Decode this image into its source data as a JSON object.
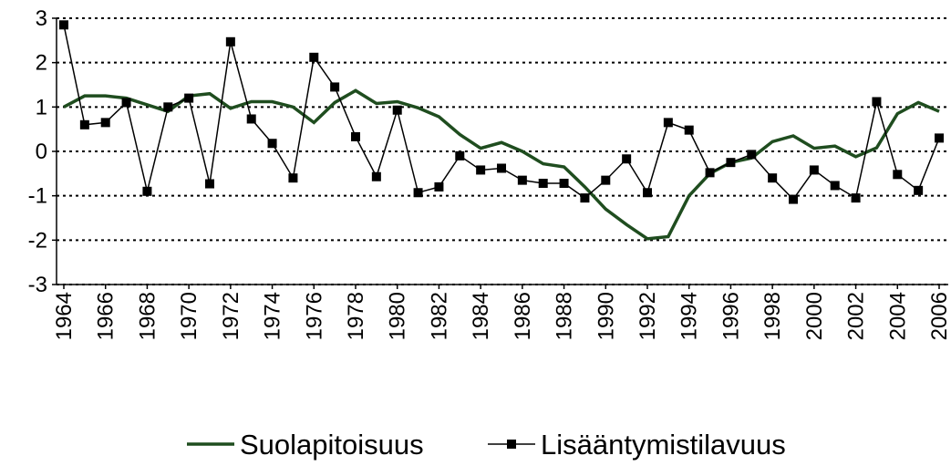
{
  "chart_data": {
    "type": "line",
    "x": [
      1964,
      1965,
      1966,
      1967,
      1968,
      1969,
      1970,
      1971,
      1972,
      1973,
      1974,
      1975,
      1976,
      1977,
      1978,
      1979,
      1980,
      1981,
      1982,
      1983,
      1984,
      1985,
      1986,
      1987,
      1988,
      1989,
      1990,
      1991,
      1992,
      1993,
      1994,
      1995,
      1996,
      1997,
      1998,
      1999,
      2000,
      2001,
      2002,
      2003,
      2004,
      2005,
      2006
    ],
    "series": [
      {
        "name": "Suolapitoisuus",
        "color": "#1f4d1f",
        "marker": "none",
        "values": [
          1.0,
          1.25,
          1.25,
          1.2,
          1.05,
          0.9,
          1.25,
          1.3,
          0.97,
          1.12,
          1.12,
          1.0,
          0.65,
          1.1,
          1.37,
          1.08,
          1.12,
          0.98,
          0.78,
          0.38,
          0.07,
          0.2,
          0.0,
          -0.28,
          -0.35,
          -0.8,
          -1.3,
          -1.65,
          -1.97,
          -1.92,
          -1.0,
          -0.5,
          -0.25,
          -0.15,
          0.22,
          0.35,
          0.07,
          0.12,
          -0.12,
          0.08,
          0.85,
          1.1,
          0.9
        ]
      },
      {
        "name": "Lisääntymistilavuus",
        "color": "#000000",
        "marker": "square",
        "values": [
          2.85,
          0.6,
          0.65,
          1.1,
          -0.9,
          1.0,
          1.2,
          -0.73,
          2.47,
          0.73,
          0.18,
          -0.6,
          2.12,
          1.45,
          0.33,
          -0.57,
          0.93,
          -0.93,
          -0.8,
          -0.1,
          -0.42,
          -0.38,
          -0.65,
          -0.72,
          -0.72,
          -1.05,
          -0.65,
          -0.17,
          -0.93,
          0.65,
          0.48,
          -0.48,
          -0.25,
          -0.07,
          -0.6,
          -1.08,
          -0.42,
          -0.77,
          -1.05,
          1.12,
          -0.52,
          -0.88,
          0.3
        ]
      }
    ],
    "xlim": [
      1964,
      2006
    ],
    "xticks": [
      1964,
      1966,
      1968,
      1970,
      1972,
      1974,
      1976,
      1978,
      1980,
      1982,
      1984,
      1986,
      1988,
      1990,
      1992,
      1994,
      1996,
      1998,
      2000,
      2002,
      2004,
      2006
    ],
    "ylim": [
      -3,
      3
    ],
    "yticks": [
      -3,
      -2,
      -1,
      0,
      1,
      2,
      3
    ],
    "grid": true,
    "legend": "bottom"
  }
}
